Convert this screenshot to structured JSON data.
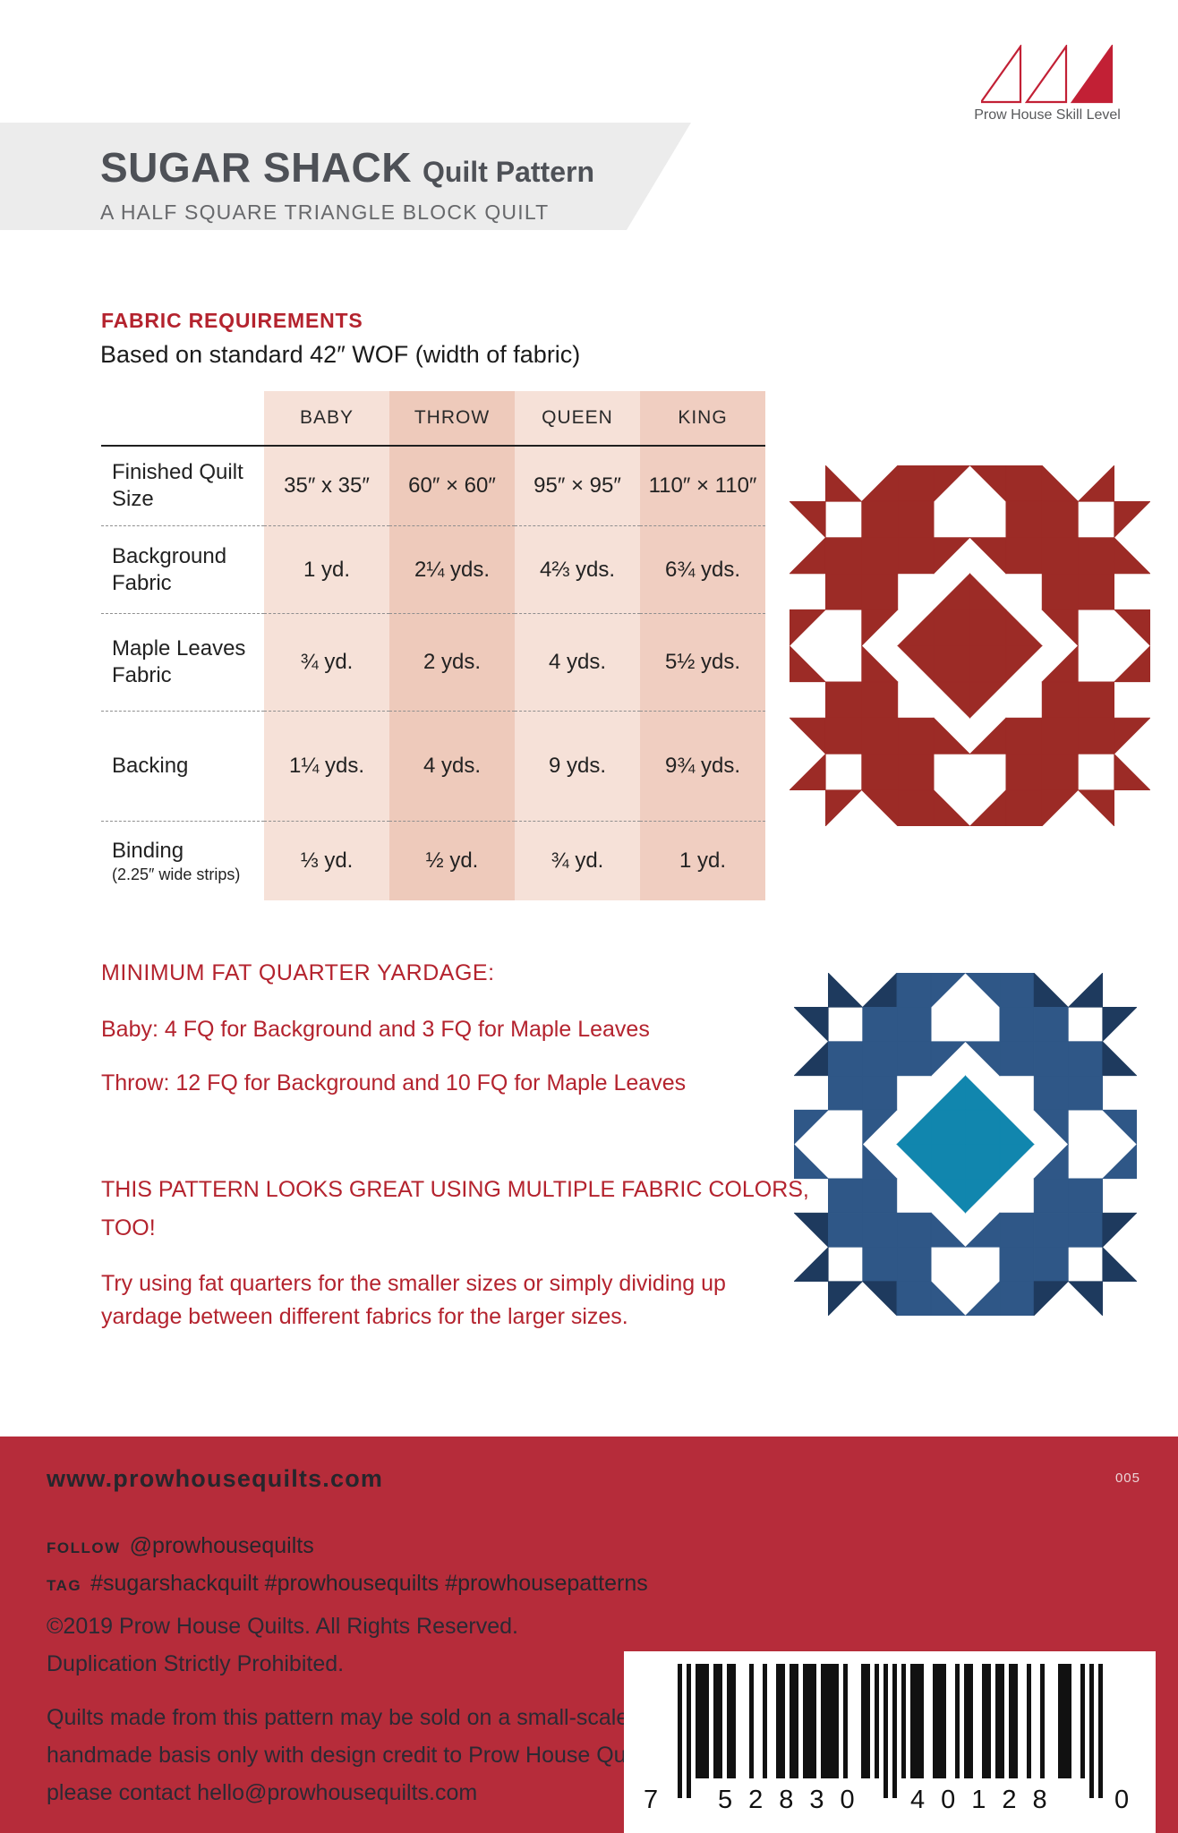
{
  "skill_logo": {
    "caption": "Prow House Skill Level",
    "levels_total": 3,
    "levels_filled": 1,
    "color": "#c22035"
  },
  "header": {
    "title": "SUGAR SHACK",
    "title_suffix": "Quilt Pattern",
    "subtitle": "A HALF SQUARE TRIANGLE BLOCK QUILT"
  },
  "fabric_requirements": {
    "heading": "FABRIC REQUIREMENTS",
    "note": "Based on standard 42″ WOF (width of fabric)",
    "columns": [
      "BABY",
      "THROW",
      "QUEEN",
      "KING"
    ],
    "column_colors": [
      "#f6e1d8",
      "#eecabb",
      "#f6e1d8",
      "#f0cec1"
    ],
    "rows": [
      {
        "label": "Finished Quilt\nSize",
        "sublabel": "",
        "values": [
          "35″ x 35″",
          "60″ × 60″",
          "95″ × 95″",
          "110″ × 110″"
        ]
      },
      {
        "label": "Background\nFabric",
        "sublabel": "",
        "values": [
          "1 yd.",
          "2¼ yds.",
          "4⅔ yds.",
          "6¾ yds."
        ]
      },
      {
        "label": "Maple Leaves\nFabric",
        "sublabel": "",
        "values": [
          "¾ yd.",
          "2 yds.",
          "4 yds.",
          "5½ yds."
        ]
      },
      {
        "label": "Backing",
        "sublabel": "",
        "values": [
          "1¼ yds.",
          "4 yds.",
          "9 yds.",
          "9¾ yds."
        ]
      },
      {
        "label": "Binding",
        "sublabel": "(2.25″ wide strips)",
        "values": [
          "⅓ yd.",
          "½ yd.",
          "¾ yd.",
          "1 yd."
        ]
      }
    ]
  },
  "fat_quarter": {
    "heading": "MINIMUM FAT QUARTER YARDAGE:",
    "line_baby": "Baby: 4 FQ for Background and 3 FQ for Maple Leaves",
    "line_throw": "Throw: 12 FQ for Background and 10 FQ for Maple Leaves"
  },
  "multi_color_note": {
    "headline1": "THIS PATTERN LOOKS GREAT USING MULTIPLE FABRIC COLORS,",
    "headline2": "TOO!",
    "body1": "Try using fat quarters for the smaller sizes or simply dividing up",
    "body2": "yardage between different fabrics for the larger sizes."
  },
  "quilt_blocks": {
    "grid": [
      [
        "w",
        "bl2",
        "br2",
        "f1",
        "tl1",
        "tr1",
        "f1",
        "bl2",
        "br2",
        "w"
      ],
      [
        "tr2",
        "w",
        "f1",
        "f1",
        "w",
        "w",
        "f1",
        "f1",
        "w",
        "tl2"
      ],
      [
        "br2",
        "f1",
        "f1",
        "f1",
        "tl1",
        "tr1",
        "f1",
        "f1",
        "f1",
        "bl2"
      ],
      [
        "w",
        "f1",
        "f1",
        "w",
        "brc",
        "blc",
        "w",
        "f1",
        "f1",
        "w"
      ],
      [
        "tl1",
        "w",
        "tl1",
        "brc",
        "fc",
        "fc",
        "blc",
        "tr1",
        "w",
        "tr1"
      ],
      [
        "bl1",
        "w",
        "bl1",
        "trc",
        "fc",
        "fc",
        "tlc",
        "br1",
        "w",
        "br1"
      ],
      [
        "w",
        "f1",
        "f1",
        "w",
        "trc",
        "tlc",
        "w",
        "f1",
        "f1",
        "w"
      ],
      [
        "tr2",
        "f1",
        "f1",
        "f1",
        "bl1",
        "br1",
        "f1",
        "f1",
        "f1",
        "tl2"
      ],
      [
        "br2",
        "w",
        "f1",
        "f1",
        "w",
        "w",
        "f1",
        "f1",
        "w",
        "bl2"
      ],
      [
        "w",
        "tl2",
        "tr2",
        "f1",
        "bl1",
        "br1",
        "f1",
        "tl2",
        "tr2",
        "w"
      ]
    ],
    "red_colors": {
      "main": "#9c2b26",
      "accent": "#9c2b26",
      "center": "#9c2b26"
    },
    "blue_colors": {
      "main": "#2f5787",
      "accent": "#1e3a5e",
      "center": "#1186ae"
    }
  },
  "footer": {
    "website": "www.prowhousequilts.com",
    "code": "005",
    "follow_label": "FOLLOW",
    "follow_value": "@prowhousequilts",
    "tag_label": "TAG",
    "tag_value": "#sugarshackquilt #prowhousequilts #prowhousepatterns",
    "copyright1": "©2019 Prow House Quilts. All Rights Reserved.",
    "copyright2": "Duplication Strictly Prohibited.",
    "licensing1": "Quilts made from this pattern may be sold on a small-scale, independent,",
    "licensing2": "handmade basis only with design credit to Prow House Quilts. For licensing,",
    "licensing3": "please contact hello@prowhousequilts.com",
    "barcode": {
      "digit_first": "7",
      "group_left": "52830",
      "group_right": "40128",
      "digit_last": "0",
      "number": "752830401280"
    }
  }
}
